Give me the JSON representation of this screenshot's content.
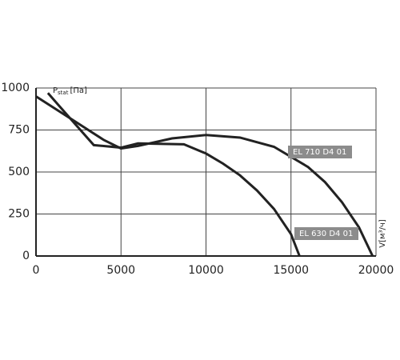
{
  "chart_data": {
    "type": "line",
    "y_label": {
      "main": "P",
      "sub": "stat",
      "unit": "[Па]"
    },
    "x_label": "V[м³/ч]",
    "series": [
      {
        "name": "EL 710 D4 01",
        "color": "#222222",
        "x": [
          0,
          2000,
          4000,
          5000,
          6000,
          8000,
          10000,
          12000,
          14000,
          16000,
          17000,
          18000,
          19000,
          19800
        ],
        "values": [
          950,
          820,
          690,
          640,
          655,
          700,
          720,
          705,
          650,
          530,
          440,
          320,
          170,
          0
        ]
      },
      {
        "name": "EL 630 D4 01",
        "color": "#222222",
        "x": [
          700,
          2000,
          3400,
          5000,
          6000,
          8700,
          10000,
          11000,
          12000,
          13000,
          14000,
          15000,
          15500
        ],
        "values": [
          970,
          820,
          660,
          645,
          670,
          665,
          610,
          550,
          480,
          390,
          280,
          130,
          0
        ]
      }
    ],
    "xlim": [
      0,
      20000
    ],
    "ylim": [
      0,
      1000
    ],
    "xticks": [
      0,
      5000,
      10000,
      15000,
      20000
    ],
    "yticks": [
      0,
      250,
      500,
      750,
      1000
    ],
    "grid": true
  }
}
